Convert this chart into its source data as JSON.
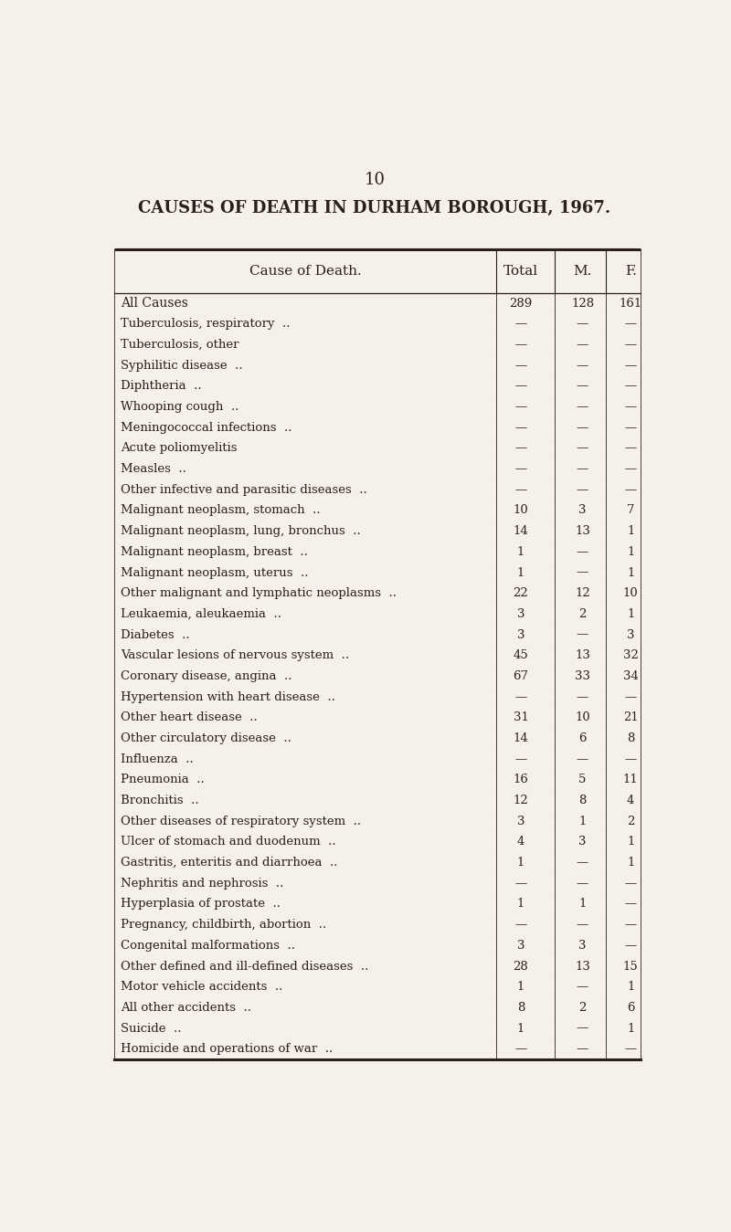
{
  "page_number": "10",
  "title": "CAUSES OF DEATH IN DURHAM BOROUGH, 1967.",
  "col_header": [
    "Cause of Death.",
    "Total",
    "M.",
    "F."
  ],
  "rows": [
    {
      "cause": "All Causes",
      "style": "smallcaps",
      "total": "289",
      "m": "128",
      "f": "161"
    },
    {
      "cause": "Tuberculosis, respiratory  ..",
      "style": "normal",
      "total": "—",
      "m": "—",
      "f": "—"
    },
    {
      "cause": "Tuberculosis, other",
      "style": "normal",
      "total": "—",
      "m": "—",
      "f": "—"
    },
    {
      "cause": "Syphilitic disease  ..",
      "style": "normal",
      "total": "—",
      "m": "—",
      "f": "—"
    },
    {
      "cause": "Diphtheria  ..",
      "style": "normal",
      "total": "—",
      "m": "—",
      "f": "—"
    },
    {
      "cause": "Whooping cough  ..",
      "style": "normal",
      "total": "—",
      "m": "—",
      "f": "—"
    },
    {
      "cause": "Meningococcal infections  ..",
      "style": "normal",
      "total": "—",
      "m": "—",
      "f": "—"
    },
    {
      "cause": "Acute poliomyelitis",
      "style": "normal",
      "total": "—",
      "m": "—",
      "f": "—"
    },
    {
      "cause": "Measles  ..",
      "style": "normal",
      "total": "—",
      "m": "—",
      "f": "—"
    },
    {
      "cause": "Other infective and parasitic diseases  ..",
      "style": "normal",
      "total": "—",
      "m": "—",
      "f": "—"
    },
    {
      "cause": "Malignant neoplasm, stomach  ..",
      "style": "normal",
      "total": "10",
      "m": "3",
      "f": "7"
    },
    {
      "cause": "Malignant neoplasm, lung, bronchus  ..",
      "style": "normal",
      "total": "14",
      "m": "13",
      "f": "1"
    },
    {
      "cause": "Malignant neoplasm, breast  ..",
      "style": "normal",
      "total": "1",
      "m": "—",
      "f": "1"
    },
    {
      "cause": "Malignant neoplasm, uterus  ..",
      "style": "normal",
      "total": "1",
      "m": "—",
      "f": "1"
    },
    {
      "cause": "Other malignant and lymphatic neoplasms  ..",
      "style": "normal",
      "total": "22",
      "m": "12",
      "f": "10"
    },
    {
      "cause": "Leukaemia, aleukaemia  ..",
      "style": "normal",
      "total": "3",
      "m": "2",
      "f": "1"
    },
    {
      "cause": "Diabetes  ..",
      "style": "normal",
      "total": "3",
      "m": "—",
      "f": "3"
    },
    {
      "cause": "Vascular lesions of nervous system  ..",
      "style": "normal",
      "total": "45",
      "m": "13",
      "f": "32"
    },
    {
      "cause": "Coronary disease, angina  ..",
      "style": "normal",
      "total": "67",
      "m": "33",
      "f": "34"
    },
    {
      "cause": "Hypertension with heart disease  ..",
      "style": "normal",
      "total": "—",
      "m": "—",
      "f": "—"
    },
    {
      "cause": "Other heart disease  ..",
      "style": "normal",
      "total": "31",
      "m": "10",
      "f": "21"
    },
    {
      "cause": "Other circulatory disease  ..",
      "style": "normal",
      "total": "14",
      "m": "6",
      "f": "8"
    },
    {
      "cause": "Influenza  ..",
      "style": "normal",
      "total": "—",
      "m": "—",
      "f": "—"
    },
    {
      "cause": "Pneumonia  ..",
      "style": "normal",
      "total": "16",
      "m": "5",
      "f": "11"
    },
    {
      "cause": "Bronchitis  ..",
      "style": "normal",
      "total": "12",
      "m": "8",
      "f": "4"
    },
    {
      "cause": "Other diseases of respiratory system  ..",
      "style": "normal",
      "total": "3",
      "m": "1",
      "f": "2"
    },
    {
      "cause": "Ulcer of stomach and duodenum  ..",
      "style": "normal",
      "total": "4",
      "m": "3",
      "f": "1"
    },
    {
      "cause": "Gastritis, enteritis and diarrhoea  ..",
      "style": "normal",
      "total": "1",
      "m": "—",
      "f": "1"
    },
    {
      "cause": "Nephritis and nephrosis  ..",
      "style": "normal",
      "total": "—",
      "m": "—",
      "f": "—"
    },
    {
      "cause": "Hyperplasia of prostate  ..",
      "style": "normal",
      "total": "1",
      "m": "1",
      "f": "—"
    },
    {
      "cause": "Pregnancy, childbirth, abortion  ..",
      "style": "normal",
      "total": "—",
      "m": "—",
      "f": "—"
    },
    {
      "cause": "Congenital malformations  ..",
      "style": "normal",
      "total": "3",
      "m": "3",
      "f": "—"
    },
    {
      "cause": "Other defined and ill-defined diseases  ..",
      "style": "normal",
      "total": "28",
      "m": "13",
      "f": "15"
    },
    {
      "cause": "Motor vehicle accidents  ..",
      "style": "normal",
      "total": "1",
      "m": "—",
      "f": "1"
    },
    {
      "cause": "All other accidents  ..",
      "style": "normal",
      "total": "8",
      "m": "2",
      "f": "6"
    },
    {
      "cause": "Suicide  ..",
      "style": "normal",
      "total": "1",
      "m": "—",
      "f": "1"
    },
    {
      "cause": "Homicide and operations of war  ..",
      "style": "normal",
      "total": "—",
      "m": "—",
      "f": "—"
    }
  ],
  "bg_color": "#f5f0e8",
  "text_color": "#2a1f1a",
  "line_color": "#2a1f1a",
  "font_size_title": 13,
  "font_size_page": 13,
  "font_size_header": 11,
  "font_size_row": 9.5
}
